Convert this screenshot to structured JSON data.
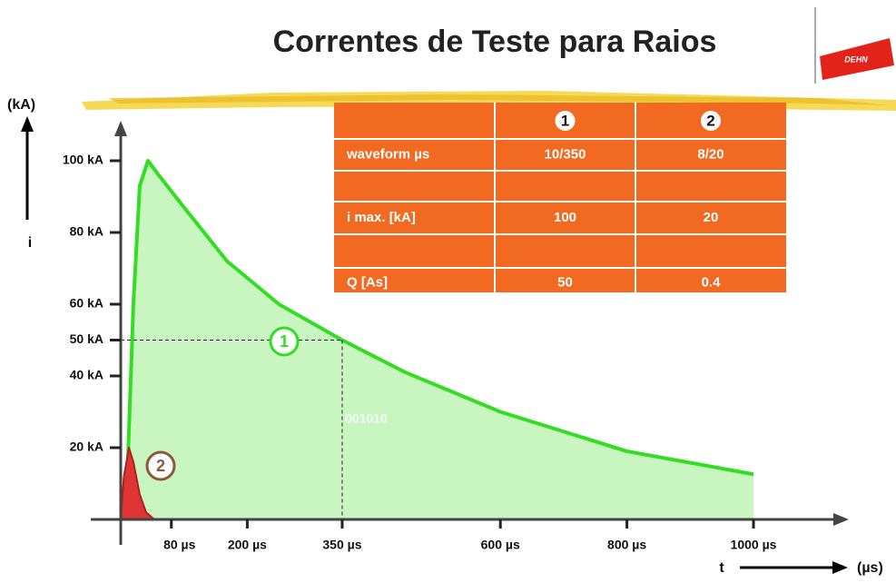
{
  "title": "Correntes de Teste para Raios",
  "logo": "DEHN",
  "table": {
    "header": [
      "1",
      "2"
    ],
    "rows": [
      [
        "waveform µs",
        "10/350",
        "8/20"
      ],
      [
        "i max. [kA]",
        "100",
        "20"
      ],
      [
        "Q [As]",
        "50",
        "0.4"
      ]
    ]
  },
  "chart_data": {
    "type": "area",
    "y_label": "(kA)",
    "y_symbol": "i",
    "x_symbol": "t",
    "x_label": "(µs)",
    "xlim": [
      0,
      1000
    ],
    "ylim": [
      0,
      100
    ],
    "xticks": [
      {
        "value": 80,
        "label": "80 µs"
      },
      {
        "value": 200,
        "label": "200 µs"
      },
      {
        "value": 350,
        "label": "350 µs"
      },
      {
        "value": 600,
        "label": "600 µs"
      },
      {
        "value": 800,
        "label": "800 µs"
      },
      {
        "value": 1000,
        "label": "1000 µs"
      }
    ],
    "yticks": [
      {
        "value": 20,
        "label": "20 kA"
      },
      {
        "value": 40,
        "label": "40 kA"
      },
      {
        "value": 50,
        "label": "50 kA"
      },
      {
        "value": 60,
        "label": "60 kA"
      },
      {
        "value": 80,
        "label": "80 kA"
      },
      {
        "value": 100,
        "label": "100 kA"
      }
    ],
    "series": [
      {
        "name": "1",
        "color": "#33dd22",
        "fill": "#c9f5c1",
        "x": [
          8,
          20,
          30,
          43,
          60,
          100,
          168,
          250,
          350,
          450,
          600,
          800,
          1000
        ],
        "values": [
          0,
          60,
          93,
          100,
          96,
          87,
          72,
          60,
          50,
          41,
          30,
          19,
          12.6
        ]
      },
      {
        "name": "2",
        "color": "#b02020",
        "fill": "#e03535",
        "x": [
          0,
          5,
          13,
          20,
          30,
          40,
          53
        ],
        "values": [
          0,
          12,
          20,
          16,
          7,
          2,
          0
        ]
      }
    ],
    "reference": {
      "x": 350,
      "y": 50
    },
    "annotation": "001010"
  }
}
